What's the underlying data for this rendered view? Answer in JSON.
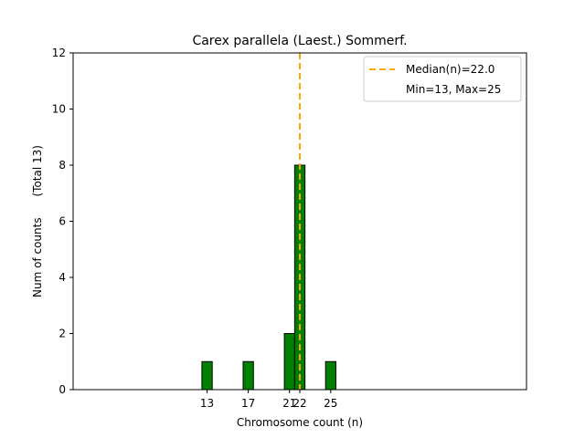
{
  "chart_data": {
    "type": "bar",
    "title": "Carex parallela (Laest.) Sommerf.",
    "xlabel": "Chromosome count (n)",
    "ylabel": "Num of counts      (Total 13)",
    "x": [
      13,
      17,
      21,
      22,
      25
    ],
    "values": [
      1,
      1,
      2,
      8,
      1
    ],
    "xticks": [
      "13",
      "17",
      "21",
      "22",
      "25"
    ],
    "xlim": [
      0,
      44
    ],
    "ylim": [
      0,
      12
    ],
    "yticks": [
      "0",
      "2",
      "4",
      "6",
      "8",
      "10",
      "12"
    ],
    "median": 22.0,
    "grid": false,
    "bar_color": "#008000",
    "bar_edge_color": "#000000",
    "median_color": "#ffa500",
    "legend": {
      "position": "top-right",
      "entries": [
        "Median(n)=22.0",
        "Min=13, Max=25"
      ]
    }
  }
}
